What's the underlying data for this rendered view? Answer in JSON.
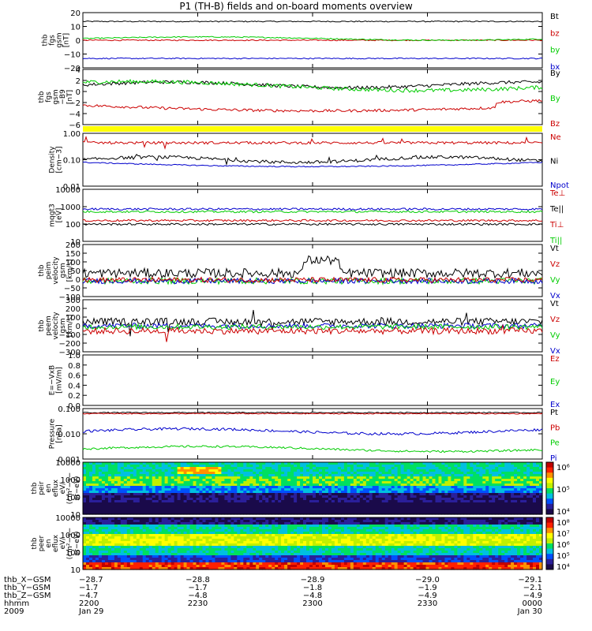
{
  "title": "P1 (TH-B) fields and on-board moments overview",
  "colors": {
    "black": "#000000",
    "red": "#cc0000",
    "green": "#00cc00",
    "blue": "#0000cc",
    "yellow": "#ffff00"
  },
  "panels": [
    {
      "id": "fgs",
      "ylabel": [
        "thb",
        "fgs",
        "gsm",
        "[nT]"
      ],
      "ticks": [
        "20",
        "10",
        "0",
        "−10",
        "−20"
      ],
      "legend": [
        {
          "t": "Bt",
          "c": "black"
        },
        {
          "t": "bz",
          "c": "red"
        },
        {
          "t": "by",
          "c": "green"
        },
        {
          "t": "bx",
          "c": "blue"
        }
      ]
    },
    {
      "id": "fgs2",
      "ylabel": [
        "thb",
        "fgs",
        "gsm",
        "−B9",
        "[nT]"
      ],
      "ticks": [
        "4",
        "2",
        "0",
        "−2",
        "−4",
        "−6"
      ],
      "legend": [
        {
          "t": "By",
          "c": "black"
        },
        {
          "t": "By",
          "c": "green"
        },
        {
          "t": "Bz",
          "c": "red"
        }
      ]
    },
    {
      "id": "density",
      "ylabel": [
        "Density",
        "[cm−3]"
      ],
      "ticks": [
        "1.00",
        "0.10",
        "0.01"
      ],
      "legend": [
        {
          "t": "Ne",
          "c": "red"
        },
        {
          "t": "Ni",
          "c": "black"
        },
        {
          "t": "Npot",
          "c": "blue"
        }
      ]
    },
    {
      "id": "temp",
      "ylabel": [
        "mqgt3",
        "[eV]"
      ],
      "ticks": [
        "10000",
        "1000",
        "100",
        "10"
      ],
      "legend": [
        {
          "t": "Te⊥",
          "c": "red"
        },
        {
          "t": "Te||",
          "c": "black"
        },
        {
          "t": "Ti⊥",
          "c": "red"
        },
        {
          "t": "Ti||",
          "c": "green"
        }
      ]
    },
    {
      "id": "vel1",
      "ylabel": [
        "thb",
        "peim",
        "velocity",
        "gsm",
        "[km/s]"
      ],
      "ticks": [
        "200",
        "150",
        "100",
        "50",
        "0",
        "−50",
        "−100"
      ],
      "legend": [
        {
          "t": "Vt",
          "c": "black"
        },
        {
          "t": "Vz",
          "c": "red"
        },
        {
          "t": "Vy",
          "c": "green"
        },
        {
          "t": "Vx",
          "c": "blue"
        }
      ]
    },
    {
      "id": "vel2",
      "ylabel": [
        "thb",
        "peem",
        "velocity",
        "gsm",
        "[km/s]"
      ],
      "ticks": [
        "300",
        "200",
        "100",
        "0",
        "−100",
        "−200",
        "−300"
      ],
      "legend": [
        {
          "t": "Vt",
          "c": "black"
        },
        {
          "t": "Vz",
          "c": "red"
        },
        {
          "t": "Vy",
          "c": "green"
        },
        {
          "t": "Vx",
          "c": "blue"
        }
      ]
    },
    {
      "id": "efield",
      "ylabel": [
        "E=−VxB",
        "[mV/m]"
      ],
      "ticks": [
        "1.0",
        "0.8",
        "0.6",
        "0.4",
        "0.2",
        "0.0"
      ],
      "legend": [
        {
          "t": "Ez",
          "c": "red"
        },
        {
          "t": "Ey",
          "c": "green"
        },
        {
          "t": "Ex",
          "c": "blue"
        }
      ]
    },
    {
      "id": "pressure",
      "ylabel": [
        "Pressure",
        "[nPa]"
      ],
      "ticks": [
        "0.100",
        "0.010",
        "0.001"
      ],
      "legend": [
        {
          "t": "Pt",
          "c": "black"
        },
        {
          "t": "Pb",
          "c": "red"
        },
        {
          "t": "Pe",
          "c": "green"
        },
        {
          "t": "Pi",
          "c": "blue"
        }
      ]
    },
    {
      "id": "ionspec",
      "ylabel": [
        "thb",
        "peir",
        "en",
        "eflux",
        "eV/",
        "(cm²−s−",
        "sr−eV)"
      ],
      "ticks": [
        "10000",
        "1000",
        "100",
        "10"
      ],
      "cbar": [
        "10⁶",
        "10⁵",
        "10⁴"
      ]
    },
    {
      "id": "elecspec",
      "ylabel": [
        "thb",
        "peer",
        "en",
        "eflux",
        "eV/",
        "(cm²−s−",
        "sr−eV)"
      ],
      "ticks": [
        "10000",
        "1000",
        "100",
        "10"
      ],
      "cbar": [
        "10⁸",
        "10⁷",
        "10⁶",
        "10⁵",
        "10⁴"
      ]
    }
  ],
  "bottom": {
    "row_labels": [
      "thb_X−GSM",
      "thb_Y−GSM",
      "thb_Z−GSM",
      "hhmm",
      "2009"
    ],
    "columns": [
      {
        "vals": [
          "−28.7",
          "−1.7",
          "−4.7",
          "2200",
          "Jan 29"
        ]
      },
      {
        "vals": [
          "−28.8",
          "−1.7",
          "−4.8",
          "2230",
          ""
        ]
      },
      {
        "vals": [
          "−28.9",
          "−1.8",
          "−4.8",
          "2300",
          ""
        ]
      },
      {
        "vals": [
          "−29.0",
          "−1.9",
          "−4.9",
          "2330",
          ""
        ]
      },
      {
        "vals": [
          "−29.1",
          "−2.1",
          "−4.9",
          "0000",
          "Jan 30"
        ]
      }
    ]
  },
  "chart_data": [
    {
      "type": "line",
      "title": "fgs gsm",
      "ylim": [
        -20,
        20
      ],
      "series": [
        {
          "name": "Bt",
          "values": [
            13,
            13,
            14,
            13.5,
            13,
            13
          ]
        },
        {
          "name": "bz",
          "values": [
            1,
            1,
            2,
            1,
            1,
            1
          ]
        },
        {
          "name": "by",
          "values": [
            1,
            1,
            2,
            2,
            1,
            1
          ]
        },
        {
          "name": "bx",
          "values": [
            -13,
            -13,
            -14,
            -13,
            -12,
            -12
          ]
        }
      ]
    },
    {
      "type": "line",
      "title": "fgs gsm",
      "ylim": [
        -6,
        4
      ],
      "series": [
        {
          "name": "By",
          "values": [
            1,
            1.5,
            2,
            2.5,
            2,
            1.5
          ]
        },
        {
          "name": "Bz",
          "values": [
            -2,
            -2.5,
            -2.5,
            -3,
            -2.5,
            -1
          ]
        }
      ]
    },
    {
      "type": "line",
      "title": "Density",
      "ylim": [
        0.01,
        1
      ],
      "series": [
        {
          "name": "Ne",
          "values": [
            0.6,
            0.6,
            0.6,
            0.6,
            0.6,
            0.6
          ]
        },
        {
          "name": "Ni",
          "values": [
            0.1,
            0.12,
            0.08,
            0.07,
            0.08,
            0.09
          ]
        },
        {
          "name": "Npot",
          "values": [
            0.09,
            0.08,
            0.05,
            0.06,
            0.06,
            0.07
          ]
        }
      ]
    }
  ]
}
